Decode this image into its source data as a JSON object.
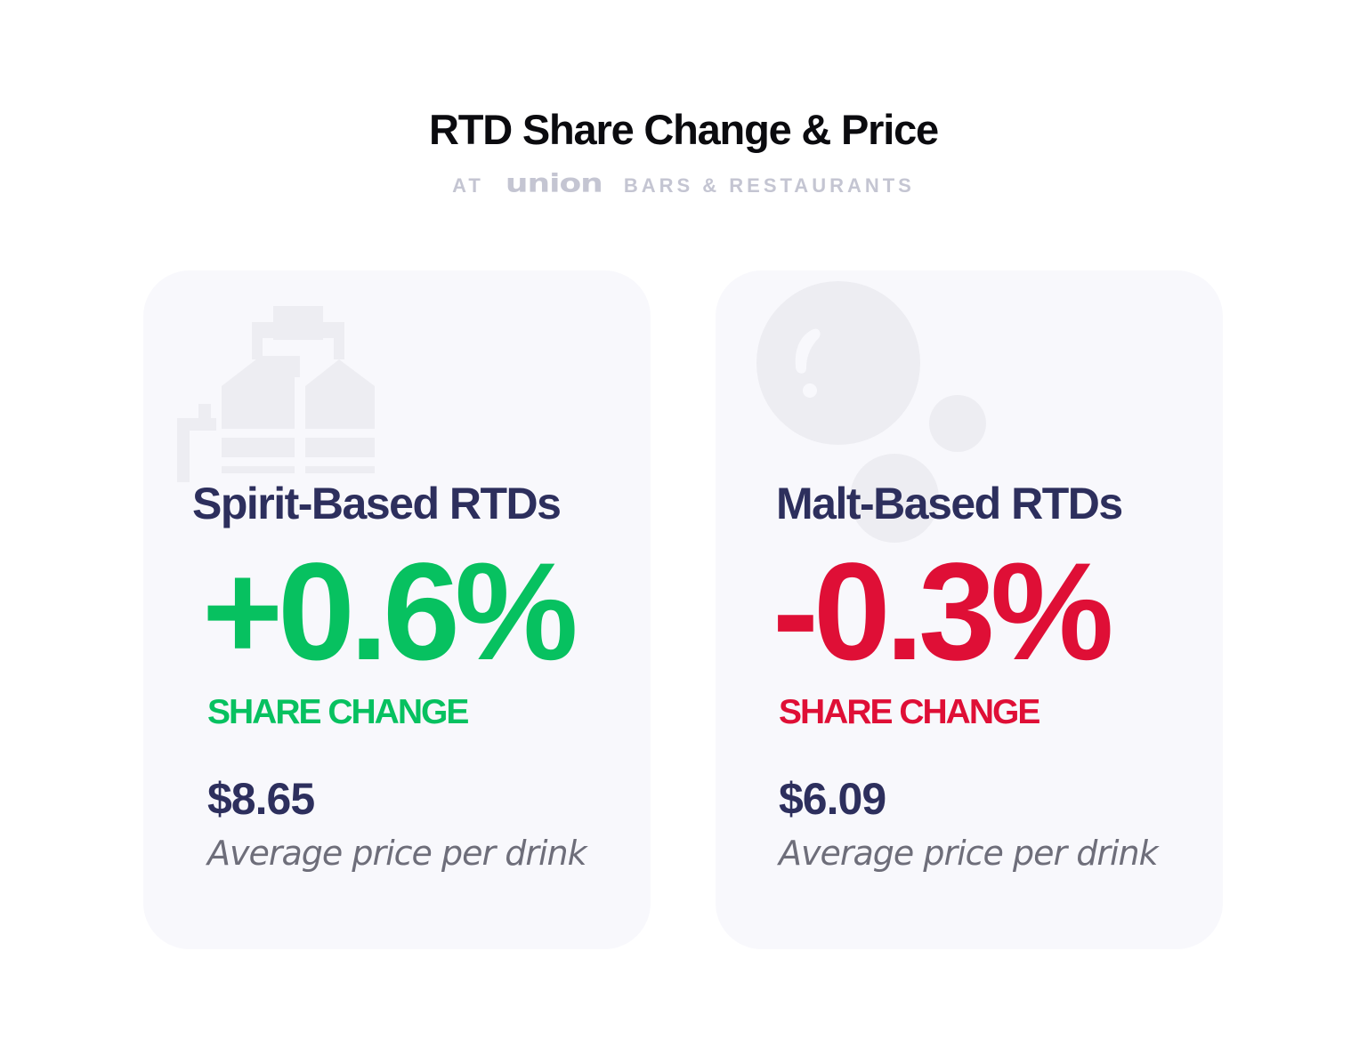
{
  "header": {
    "title": "RTD Share Change & Price",
    "subtitle_prefix": "AT",
    "brand_logo": "union",
    "subtitle_suffix": "BARS & RESTAURANTS"
  },
  "cards": [
    {
      "category": "Spirit-Based RTDs",
      "share_change": "+0.6%",
      "share_change_label": "SHARE CHANGE",
      "price": "$8.65",
      "price_label": "Average price per drink",
      "icon": "bottles-icon",
      "accent_color": "#07c160"
    },
    {
      "category": "Malt-Based RTDs",
      "share_change": "-0.3%",
      "share_change_label": "SHARE CHANGE",
      "price": "$6.09",
      "price_label": "Average price per drink",
      "icon": "bubbles-icon",
      "accent_color": "#df0f36"
    }
  ],
  "colors": {
    "title": "#0b0b0f",
    "subtitle": "#c4c5d2",
    "card_background": "#f8f8fc",
    "navy_text": "#2d2f5d",
    "muted_text": "#6e6e7a",
    "decor": "#ededf2"
  }
}
